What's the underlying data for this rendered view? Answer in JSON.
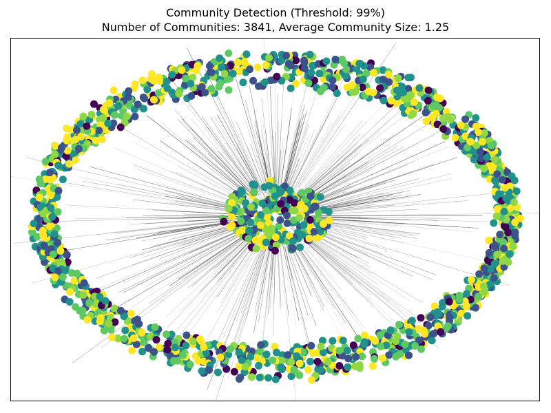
{
  "figure": {
    "title": "Community Detection (Threshold: 99%)",
    "subtitle": "Number of Communities: 3841, Average Community Size: 1.25"
  },
  "graph": {
    "colormap": [
      "#440154",
      "#3b528b",
      "#21918c",
      "#5ec962",
      "#8fd744",
      "#fde725"
    ],
    "edge_color": "#000000",
    "node_groups": [
      "outer-ring",
      "central-cluster"
    ]
  }
}
